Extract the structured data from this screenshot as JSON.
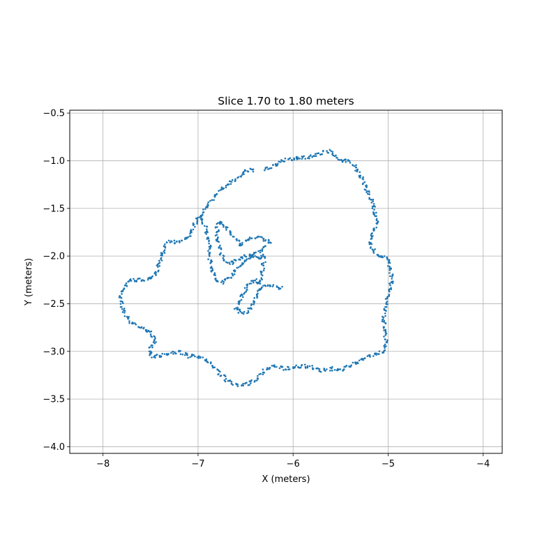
{
  "chart_data": {
    "type": "scatter",
    "title": "Slice 1.70 to 1.80 meters",
    "xlabel": "X (meters)",
    "ylabel": "Y (meters)",
    "xlim": [
      -8.35,
      -3.8
    ],
    "ylim": [
      -4.07,
      -0.47
    ],
    "xticks": [
      -8,
      -7,
      -6,
      -5,
      -4
    ],
    "yticks": [
      -0.5,
      -1.0,
      -1.5,
      -2.0,
      -2.5,
      -3.0,
      -3.5,
      -4.0
    ],
    "xtick_labels": [
      "−8",
      "−7",
      "−6",
      "−5",
      "−4"
    ],
    "ytick_labels": [
      "−0.5",
      "−1.0",
      "−1.5",
      "−2.0",
      "−2.5",
      "−3.0",
      "−3.5",
      "−4.0"
    ],
    "grid": true,
    "legend": "none",
    "marker_color": "#1f77b4",
    "series": [
      {
        "x": [
          -6.3,
          -6.2,
          -6.1,
          -6.0,
          -5.9,
          -5.8,
          -5.7,
          -5.62,
          -5.55,
          -5.5,
          -5.42,
          -5.35,
          -5.3,
          -5.25,
          -5.2,
          -5.16,
          -5.14,
          -5.12,
          -5.16,
          -5.2,
          -5.15,
          -5.1,
          -5.05,
          -5.0,
          -4.97,
          -4.96,
          -4.98,
          -5.02,
          -5.05,
          -5.03,
          -5.02,
          -5.05,
          -5.1,
          -5.2,
          -5.3,
          -5.4,
          -5.5,
          -5.6,
          -5.7,
          -5.8,
          -5.9,
          -6.0,
          -6.1,
          -6.2,
          -6.3,
          -6.4,
          -6.5,
          -6.6,
          -6.7,
          -6.8,
          -6.9,
          -7.0,
          -7.1,
          -7.2,
          -7.3,
          -7.4,
          -7.5,
          -7.5,
          -7.45,
          -7.5,
          -7.6,
          -7.7,
          -7.78,
          -7.82,
          -7.8,
          -7.75,
          -7.7,
          -7.6,
          -7.55,
          -7.45,
          -7.4,
          -7.35,
          -7.3,
          -7.2,
          -7.1,
          -7.05,
          -7.0,
          -6.95,
          -6.85,
          -6.75,
          -6.7,
          -6.6,
          -6.55,
          -6.5,
          -6.4
        ],
        "y": [
          -1.1,
          -1.05,
          -1.0,
          -0.98,
          -0.97,
          -0.95,
          -0.92,
          -0.9,
          -0.95,
          -1.0,
          -1.0,
          -1.05,
          -1.15,
          -1.25,
          -1.35,
          -1.45,
          -1.55,
          -1.65,
          -1.75,
          -1.85,
          -1.95,
          -2.0,
          -2.0,
          -2.05,
          -2.15,
          -2.25,
          -2.35,
          -2.5,
          -2.65,
          -2.8,
          -2.95,
          -3.0,
          -3.02,
          -3.05,
          -3.1,
          -3.15,
          -3.2,
          -3.18,
          -3.2,
          -3.17,
          -3.15,
          -3.17,
          -3.18,
          -3.15,
          -3.2,
          -3.3,
          -3.35,
          -3.35,
          -3.3,
          -3.2,
          -3.1,
          -3.05,
          -3.05,
          -3.0,
          -3.02,
          -3.05,
          -3.05,
          -2.95,
          -2.9,
          -2.8,
          -2.75,
          -2.7,
          -2.6,
          -2.45,
          -2.35,
          -2.3,
          -2.25,
          -2.25,
          -2.25,
          -2.2,
          -2.05,
          -1.9,
          -1.85,
          -1.85,
          -1.8,
          -1.7,
          -1.6,
          -1.55,
          -1.4,
          -1.3,
          -1.25,
          -1.2,
          -1.15,
          -1.1,
          -1.1
        ]
      },
      {
        "x": [
          -6.98,
          -6.95,
          -6.92,
          -6.9,
          -6.88,
          -6.88,
          -6.86,
          -6.85,
          -6.83,
          -6.8,
          -6.75,
          -6.7,
          -6.65,
          -6.6,
          -6.55,
          -6.5,
          -6.45,
          -6.4,
          -6.35,
          -6.3,
          -6.25,
          -6.35,
          -6.4,
          -6.45,
          -6.5,
          -6.55,
          -6.6,
          -6.65,
          -6.7,
          -6.75,
          -6.78,
          -6.8,
          -6.8,
          -6.78,
          -6.75,
          -6.7,
          -6.65,
          -6.6,
          -6.55,
          -6.5,
          -6.45,
          -6.4,
          -6.35,
          -6.3,
          -6.35,
          -6.4,
          -6.45,
          -6.5,
          -6.55,
          -6.6,
          -6.55,
          -6.5,
          -6.45,
          -6.4,
          -6.35,
          -6.3,
          -6.25,
          -6.2,
          -6.15,
          -6.1
        ],
        "y": [
          -1.6,
          -1.65,
          -1.7,
          -1.8,
          -1.9,
          -2.0,
          -2.1,
          -2.15,
          -2.2,
          -2.25,
          -2.28,
          -2.25,
          -2.2,
          -2.15,
          -2.1,
          -2.05,
          -2.0,
          -1.98,
          -1.95,
          -1.9,
          -1.85,
          -1.8,
          -1.8,
          -1.82,
          -1.85,
          -1.88,
          -1.82,
          -1.78,
          -1.7,
          -1.65,
          -1.65,
          -1.7,
          -1.8,
          -1.9,
          -2.0,
          -2.05,
          -2.08,
          -2.05,
          -2.02,
          -2.0,
          -2.0,
          -2.0,
          -2.02,
          -2.0,
          -2.3,
          -2.25,
          -2.28,
          -2.35,
          -2.45,
          -2.55,
          -2.6,
          -2.6,
          -2.55,
          -2.45,
          -2.35,
          -2.3,
          -2.32,
          -2.32,
          -2.33,
          -2.33
        ]
      }
    ]
  }
}
